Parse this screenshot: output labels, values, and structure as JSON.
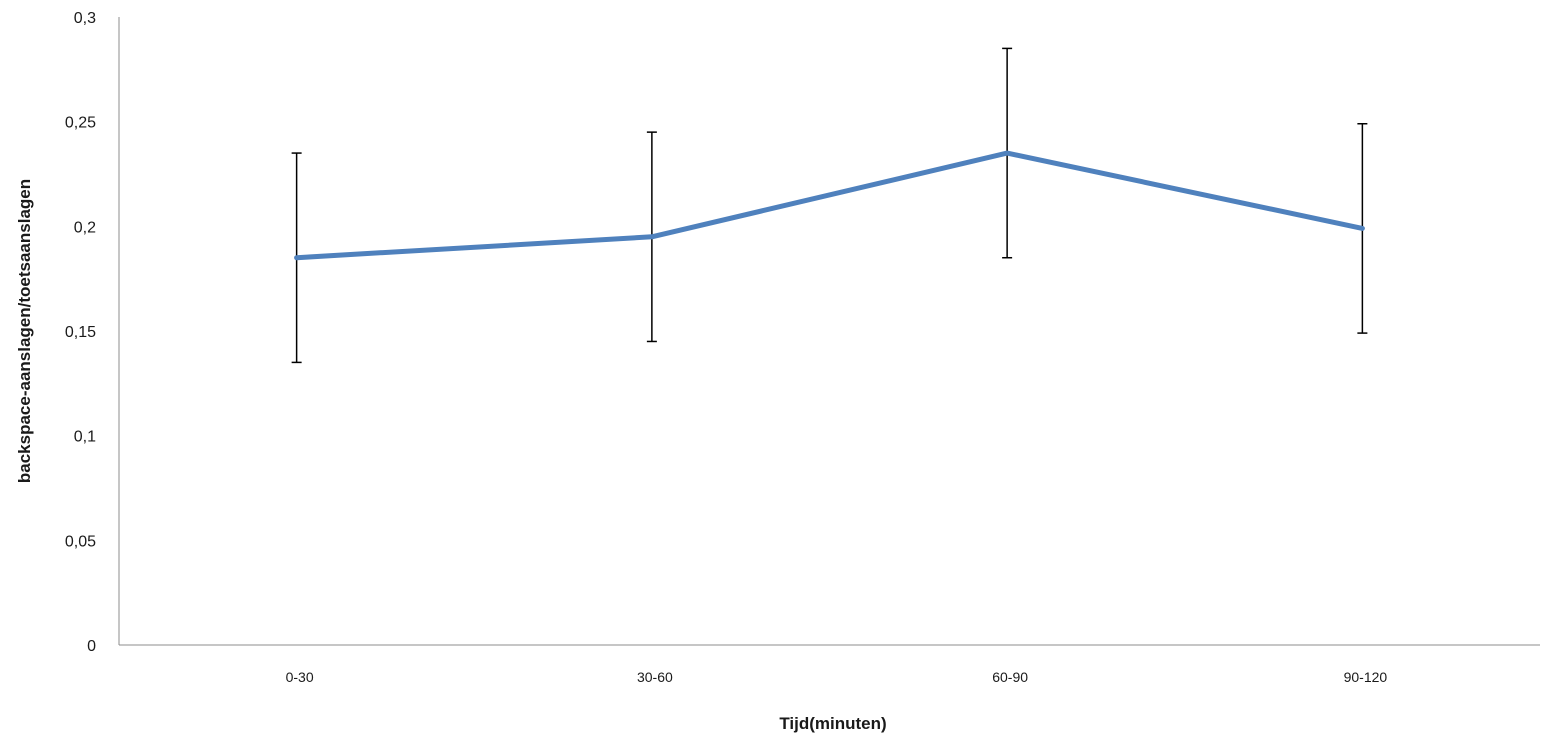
{
  "chart_data": {
    "type": "line",
    "categories": [
      "0-30",
      "30-60",
      "60-90",
      "90-120"
    ],
    "series": [
      {
        "values": [
          0.185,
          0.195,
          0.235,
          0.199
        ],
        "error": [
          0.05,
          0.05,
          0.05,
          0.05
        ],
        "color": "#4f81bd"
      }
    ],
    "xlabel": "Tijd(minuten)",
    "ylabel": "backspace-aanslagen/toetsaanslagen",
    "ylim": [
      0,
      0.3
    ],
    "yticks": [
      0,
      0.05,
      0.1,
      0.15,
      0.2,
      0.25,
      0.3
    ],
    "ytick_labels": [
      "0",
      "0,05",
      "0,1",
      "0,15",
      "0,2",
      "0,25",
      "0,3"
    ],
    "grid": false,
    "legend": "none"
  }
}
